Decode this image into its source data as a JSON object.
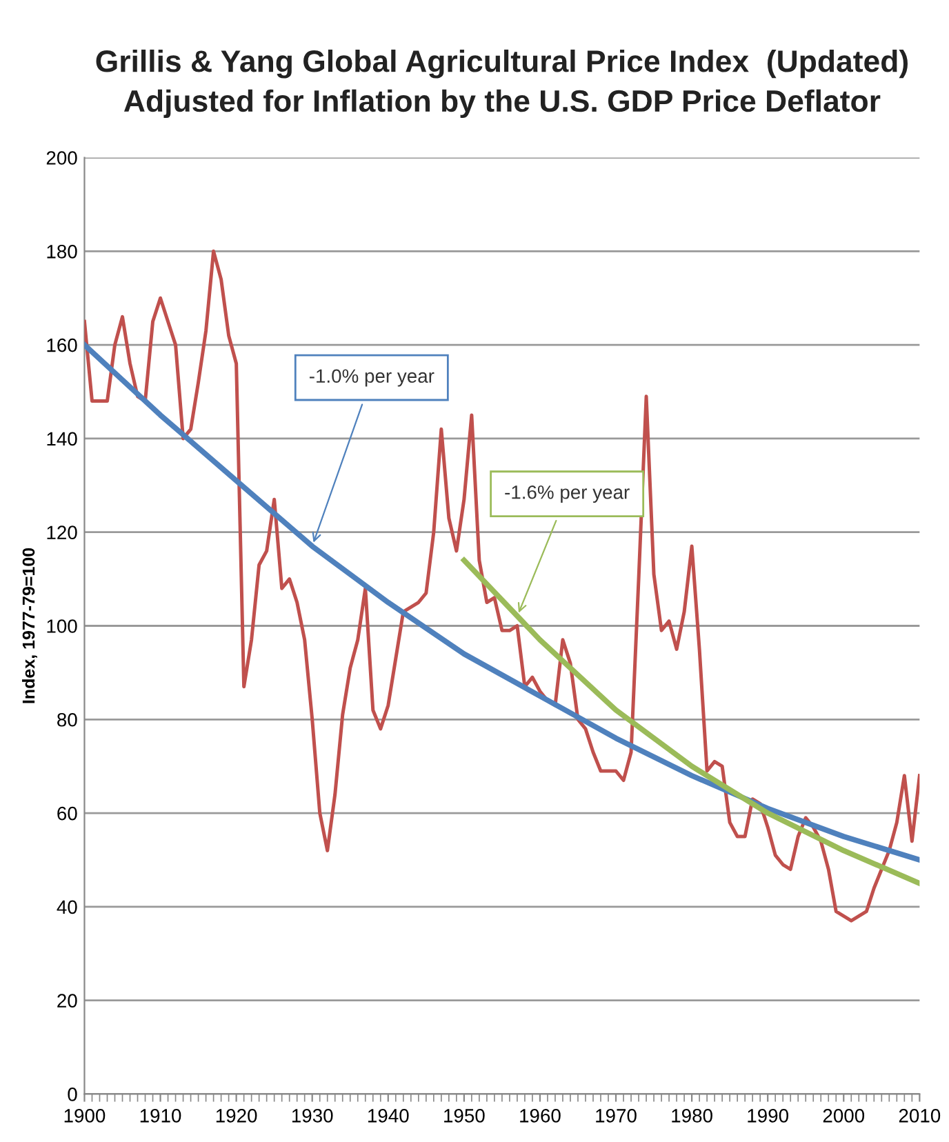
{
  "chart_data": {
    "type": "line",
    "title": "Grillis & Yang Global Agricultural Price Index  (Updated)\nAdjusted for Inflation by the U.S. GDP Price Deflator",
    "ylabel": "Index, 1977-79=100",
    "x": [
      1900,
      1901,
      1902,
      1903,
      1904,
      1905,
      1906,
      1907,
      1908,
      1909,
      1910,
      1911,
      1912,
      1913,
      1914,
      1915,
      1916,
      1917,
      1918,
      1919,
      1920,
      1921,
      1922,
      1923,
      1924,
      1925,
      1926,
      1927,
      1928,
      1929,
      1930,
      1931,
      1932,
      1933,
      1934,
      1935,
      1936,
      1937,
      1938,
      1939,
      1940,
      1941,
      1942,
      1943,
      1944,
      1945,
      1946,
      1947,
      1948,
      1949,
      1950,
      1951,
      1952,
      1953,
      1954,
      1955,
      1956,
      1957,
      1958,
      1959,
      1960,
      1961,
      1962,
      1963,
      1964,
      1965,
      1966,
      1967,
      1968,
      1969,
      1970,
      1971,
      1972,
      1973,
      1974,
      1975,
      1976,
      1977,
      1978,
      1979,
      1980,
      1981,
      1982,
      1983,
      1984,
      1985,
      1986,
      1987,
      1988,
      1989,
      1990,
      1991,
      1992,
      1993,
      1994,
      1995,
      1996,
      1997,
      1998,
      1999,
      2000,
      2001,
      2002,
      2003,
      2004,
      2005,
      2006,
      2007,
      2008,
      2009,
      2010
    ],
    "series": [
      {
        "color": "#c0504d",
        "values": [
          165,
          148,
          148,
          148,
          160,
          166,
          156,
          149,
          148,
          165,
          170,
          165,
          160,
          140,
          142,
          152,
          163,
          180,
          174,
          162,
          156,
          87,
          97,
          113,
          116,
          127,
          108,
          110,
          105,
          97,
          80,
          60,
          52,
          64,
          81,
          91,
          97,
          108,
          82,
          78,
          83,
          93,
          103,
          104,
          105,
          107,
          120,
          142,
          123,
          116,
          127,
          145,
          114,
          105,
          106,
          99,
          99,
          100,
          87,
          89,
          86,
          84,
          83,
          97,
          92,
          80,
          78,
          73,
          69,
          69,
          69,
          67,
          73,
          110,
          149,
          111,
          99,
          101,
          95,
          103,
          117,
          95,
          69,
          71,
          70,
          58,
          55,
          55,
          63,
          62,
          57,
          51,
          49,
          48,
          55,
          59,
          57,
          54,
          48,
          39,
          38,
          37,
          38,
          39,
          44,
          48,
          52,
          58,
          68,
          54,
          68
        ]
      },
      {
        "color": "#4f81bd",
        "type": "line",
        "x": [
          1900,
          1910,
          1920,
          1930,
          1940,
          1950,
          1960,
          1970,
          1980,
          1990,
          2000,
          2010
        ],
        "values": [
          160,
          145,
          131,
          117,
          105,
          94,
          85,
          76,
          68,
          61,
          55,
          50
        ]
      },
      {
        "color": "#9bbb59",
        "type": "line",
        "x": [
          1950,
          1960,
          1970,
          1980,
          1990,
          2000,
          2010
        ],
        "values": [
          114,
          97,
          82,
          70,
          60,
          52,
          45
        ]
      }
    ],
    "annotations": [
      {
        "text": "-1.0% per year",
        "x": 1930,
        "y": 117
      },
      {
        "text": "-1.6% per year",
        "x": 1957,
        "y": 102
      }
    ],
    "xlim": [
      1900,
      2010
    ],
    "xticks": [
      1900,
      1910,
      1920,
      1930,
      1940,
      1950,
      1960,
      1970,
      1980,
      1990,
      2000,
      2010
    ],
    "ylim": [
      0,
      200
    ],
    "yticks": [
      0,
      20,
      40,
      60,
      80,
      100,
      120,
      140,
      160,
      180,
      200
    ],
    "grid": "y",
    "marker": "none",
    "line_style": "solid",
    "legend": false
  }
}
